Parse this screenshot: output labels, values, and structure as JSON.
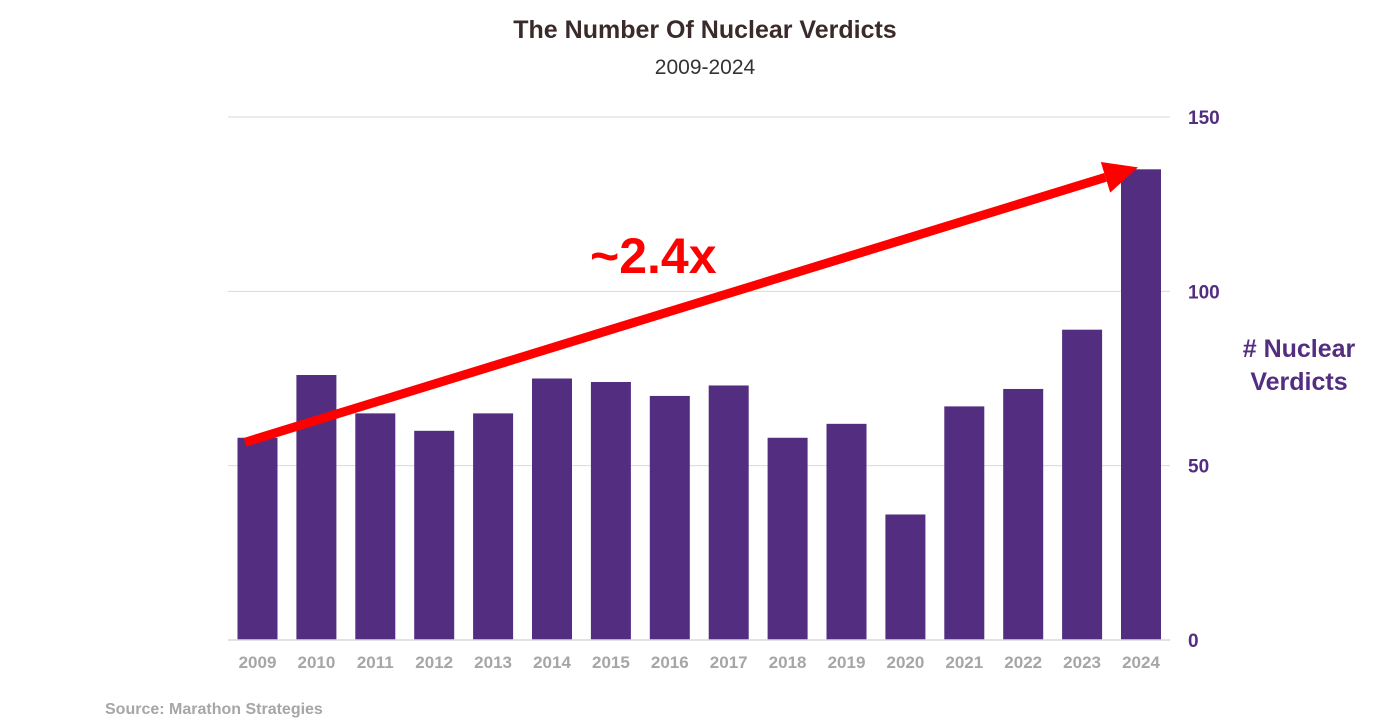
{
  "chart_data": {
    "type": "bar",
    "title": "The Number Of Nuclear Verdicts",
    "subtitle": "2009-2024",
    "categories": [
      "2009",
      "2010",
      "2011",
      "2012",
      "2013",
      "2014",
      "2015",
      "2016",
      "2017",
      "2018",
      "2019",
      "2020",
      "2021",
      "2022",
      "2023",
      "2024"
    ],
    "series": [
      {
        "values": [
          58,
          76,
          65,
          60,
          65,
          75,
          74,
          70,
          73,
          58,
          62,
          36,
          67,
          72,
          89,
          135
        ],
        "color": "#522d80"
      }
    ],
    "ylabel": "# Nuclear Verdicts",
    "ylabel_lines": [
      "# Nuclear",
      "Verdicts"
    ],
    "ylim": [
      0,
      150
    ],
    "yticks": [
      "0",
      "50",
      "100",
      "150"
    ],
    "y_axis_side": "right",
    "grid": true,
    "legend": "none",
    "annotation": {
      "text": "~2.4x",
      "from_value": 59,
      "to_value": 137,
      "color": "#ff0000"
    },
    "source": "Source: Marathon Strategies"
  },
  "colors": {
    "bar": "#522d80",
    "axis_label": "#522d80",
    "category_label": "#a6a6a6",
    "gridline": "#d9d9d9",
    "arrow": "#ff0000",
    "title": "#3b2a2a"
  }
}
